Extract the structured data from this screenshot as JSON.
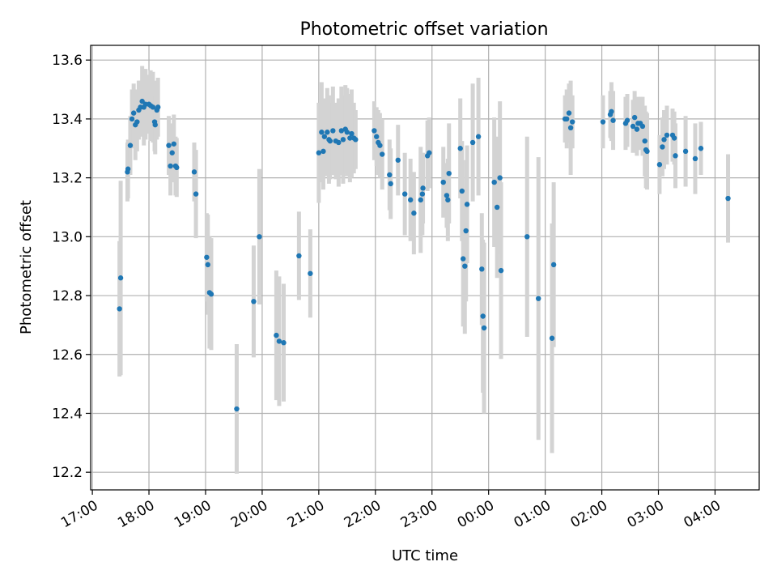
{
  "chart_data": {
    "type": "scatter",
    "title": "Photometric offset variation",
    "xlabel": "UTC time",
    "ylabel": "Photometric offset",
    "x_units": "hours since 17:00 UTC",
    "xlim": [
      -0.03,
      11.78
    ],
    "ylim": [
      12.14,
      13.65
    ],
    "grid": true,
    "marker_color": "#1f77b4",
    "errorbar_color": "#d3d3d3",
    "x_ticks": [
      {
        "value": 0,
        "label": "17:00"
      },
      {
        "value": 1,
        "label": "18:00"
      },
      {
        "value": 2,
        "label": "19:00"
      },
      {
        "value": 3,
        "label": "20:00"
      },
      {
        "value": 4,
        "label": "21:00"
      },
      {
        "value": 5,
        "label": "22:00"
      },
      {
        "value": 6,
        "label": "23:00"
      },
      {
        "value": 7,
        "label": "00:00"
      },
      {
        "value": 8,
        "label": "01:00"
      },
      {
        "value": 9,
        "label": "02:00"
      },
      {
        "value": 10,
        "label": "03:00"
      },
      {
        "value": 11,
        "label": "04:00"
      }
    ],
    "y_ticks": [
      {
        "value": 12.2,
        "label": "12.2"
      },
      {
        "value": 12.4,
        "label": "12.4"
      },
      {
        "value": 12.6,
        "label": "12.6"
      },
      {
        "value": 12.8,
        "label": "12.8"
      },
      {
        "value": 13.0,
        "label": "13.0"
      },
      {
        "value": 13.2,
        "label": "13.2"
      },
      {
        "value": 13.4,
        "label": "13.4"
      },
      {
        "value": 13.6,
        "label": "13.6"
      }
    ],
    "points": [
      [
        0.48,
        12.755,
        0.23
      ],
      [
        0.5,
        12.86,
        0.33
      ],
      [
        0.62,
        13.22,
        0.1
      ],
      [
        0.63,
        13.23,
        0.1
      ],
      [
        0.67,
        13.31,
        0.1
      ],
      [
        0.7,
        13.4,
        0.1
      ],
      [
        0.73,
        13.42,
        0.1
      ],
      [
        0.76,
        13.38,
        0.12
      ],
      [
        0.79,
        13.39,
        0.1
      ],
      [
        0.82,
        13.43,
        0.1
      ],
      [
        0.85,
        13.44,
        0.09
      ],
      [
        0.88,
        13.46,
        0.12
      ],
      [
        0.91,
        13.44,
        0.13
      ],
      [
        0.94,
        13.45,
        0.12
      ],
      [
        1.0,
        13.45,
        0.1
      ],
      [
        1.03,
        13.445,
        0.12
      ],
      [
        1.07,
        13.44,
        0.12
      ],
      [
        1.1,
        13.39,
        0.1
      ],
      [
        1.11,
        13.38,
        0.1
      ],
      [
        1.14,
        13.43,
        0.1
      ],
      [
        1.16,
        13.44,
        0.1
      ],
      [
        1.35,
        13.31,
        0.1
      ],
      [
        1.38,
        13.24,
        0.1
      ],
      [
        1.41,
        13.285,
        0.1
      ],
      [
        1.44,
        13.315,
        0.1
      ],
      [
        1.47,
        13.24,
        0.1
      ],
      [
        1.49,
        13.235,
        0.1
      ],
      [
        1.8,
        13.22,
        0.1
      ],
      [
        1.83,
        13.145,
        0.15
      ],
      [
        2.02,
        12.93,
        0.15
      ],
      [
        2.04,
        12.905,
        0.17
      ],
      [
        2.07,
        12.81,
        0.19
      ],
      [
        2.1,
        12.805,
        0.19
      ],
      [
        2.55,
        12.415,
        0.22
      ],
      [
        2.85,
        12.78,
        0.19
      ],
      [
        2.95,
        13.0,
        0.23
      ],
      [
        3.25,
        12.665,
        0.22
      ],
      [
        3.3,
        12.645,
        0.22
      ],
      [
        3.38,
        12.64,
        0.2
      ],
      [
        3.65,
        12.935,
        0.15
      ],
      [
        3.85,
        12.875,
        0.15
      ],
      [
        4.0,
        13.285,
        0.17
      ],
      [
        4.05,
        13.355,
        0.17
      ],
      [
        4.08,
        13.29,
        0.13
      ],
      [
        4.1,
        13.34,
        0.13
      ],
      [
        4.15,
        13.355,
        0.15
      ],
      [
        4.18,
        13.33,
        0.15
      ],
      [
        4.2,
        13.325,
        0.13
      ],
      [
        4.25,
        13.36,
        0.15
      ],
      [
        4.3,
        13.325,
        0.13
      ],
      [
        4.35,
        13.32,
        0.15
      ],
      [
        4.4,
        13.36,
        0.15
      ],
      [
        4.43,
        13.33,
        0.15
      ],
      [
        4.47,
        13.365,
        0.15
      ],
      [
        4.5,
        13.355,
        0.15
      ],
      [
        4.55,
        13.335,
        0.15
      ],
      [
        4.58,
        13.35,
        0.15
      ],
      [
        4.62,
        13.335,
        0.12
      ],
      [
        4.65,
        13.33,
        0.1
      ],
      [
        4.98,
        13.36,
        0.1
      ],
      [
        5.02,
        13.34,
        0.1
      ],
      [
        5.05,
        13.32,
        0.11
      ],
      [
        5.08,
        13.31,
        0.11
      ],
      [
        5.12,
        13.28,
        0.12
      ],
      [
        5.25,
        13.21,
        0.12
      ],
      [
        5.27,
        13.18,
        0.12
      ],
      [
        5.4,
        13.26,
        0.12
      ],
      [
        5.52,
        13.145,
        0.14
      ],
      [
        5.62,
        13.125,
        0.14
      ],
      [
        5.68,
        13.08,
        0.14
      ],
      [
        5.8,
        13.125,
        0.18
      ],
      [
        5.83,
        13.145,
        0.14
      ],
      [
        5.84,
        13.165,
        0.12
      ],
      [
        5.92,
        13.275,
        0.12
      ],
      [
        5.95,
        13.285,
        0.12
      ],
      [
        6.2,
        13.185,
        0.12
      ],
      [
        6.26,
        13.14,
        0.11
      ],
      [
        6.28,
        13.125,
        0.14
      ],
      [
        6.3,
        13.215,
        0.17
      ],
      [
        6.5,
        13.3,
        0.17
      ],
      [
        6.53,
        13.155,
        0.17
      ],
      [
        6.55,
        12.925,
        0.23
      ],
      [
        6.58,
        12.9,
        0.23
      ],
      [
        6.6,
        13.02,
        0.24
      ],
      [
        6.62,
        13.11,
        0.2
      ],
      [
        6.72,
        13.32,
        0.2
      ],
      [
        6.82,
        13.34,
        0.2
      ],
      [
        6.88,
        12.89,
        0.19
      ],
      [
        6.9,
        12.73,
        0.26
      ],
      [
        6.92,
        12.69,
        0.29
      ],
      [
        7.1,
        13.185,
        0.22
      ],
      [
        7.15,
        13.1,
        0.24
      ],
      [
        7.2,
        13.2,
        0.26
      ],
      [
        7.22,
        12.885,
        0.3
      ],
      [
        7.68,
        13.0,
        0.34
      ],
      [
        7.88,
        12.79,
        0.48
      ],
      [
        8.12,
        12.655,
        0.39
      ],
      [
        8.15,
        12.905,
        0.28
      ],
      [
        8.35,
        13.4,
        0.08
      ],
      [
        8.38,
        13.4,
        0.1
      ],
      [
        8.42,
        13.42,
        0.1
      ],
      [
        8.45,
        13.37,
        0.16
      ],
      [
        8.48,
        13.39,
        0.09
      ],
      [
        9.02,
        13.39,
        0.09
      ],
      [
        9.15,
        13.415,
        0.08
      ],
      [
        9.17,
        13.425,
        0.1
      ],
      [
        9.2,
        13.395,
        0.1
      ],
      [
        9.42,
        13.385,
        0.09
      ],
      [
        9.45,
        13.395,
        0.09
      ],
      [
        9.55,
        13.375,
        0.09
      ],
      [
        9.58,
        13.405,
        0.09
      ],
      [
        9.62,
        13.365,
        0.09
      ],
      [
        9.64,
        13.385,
        0.09
      ],
      [
        9.68,
        13.385,
        0.09
      ],
      [
        9.72,
        13.375,
        0.1
      ],
      [
        9.76,
        13.325,
        0.12
      ],
      [
        9.78,
        13.295,
        0.13
      ],
      [
        9.8,
        13.29,
        0.13
      ],
      [
        10.02,
        13.245,
        0.1
      ],
      [
        10.07,
        13.305,
        0.1
      ],
      [
        10.1,
        13.33,
        0.1
      ],
      [
        10.15,
        13.345,
        0.1
      ],
      [
        10.25,
        13.345,
        0.09
      ],
      [
        10.28,
        13.335,
        0.09
      ],
      [
        10.3,
        13.275,
        0.11
      ],
      [
        10.48,
        13.29,
        0.12
      ],
      [
        10.65,
        13.265,
        0.12
      ],
      [
        10.75,
        13.3,
        0.09
      ],
      [
        11.23,
        13.13,
        0.15
      ]
    ]
  }
}
